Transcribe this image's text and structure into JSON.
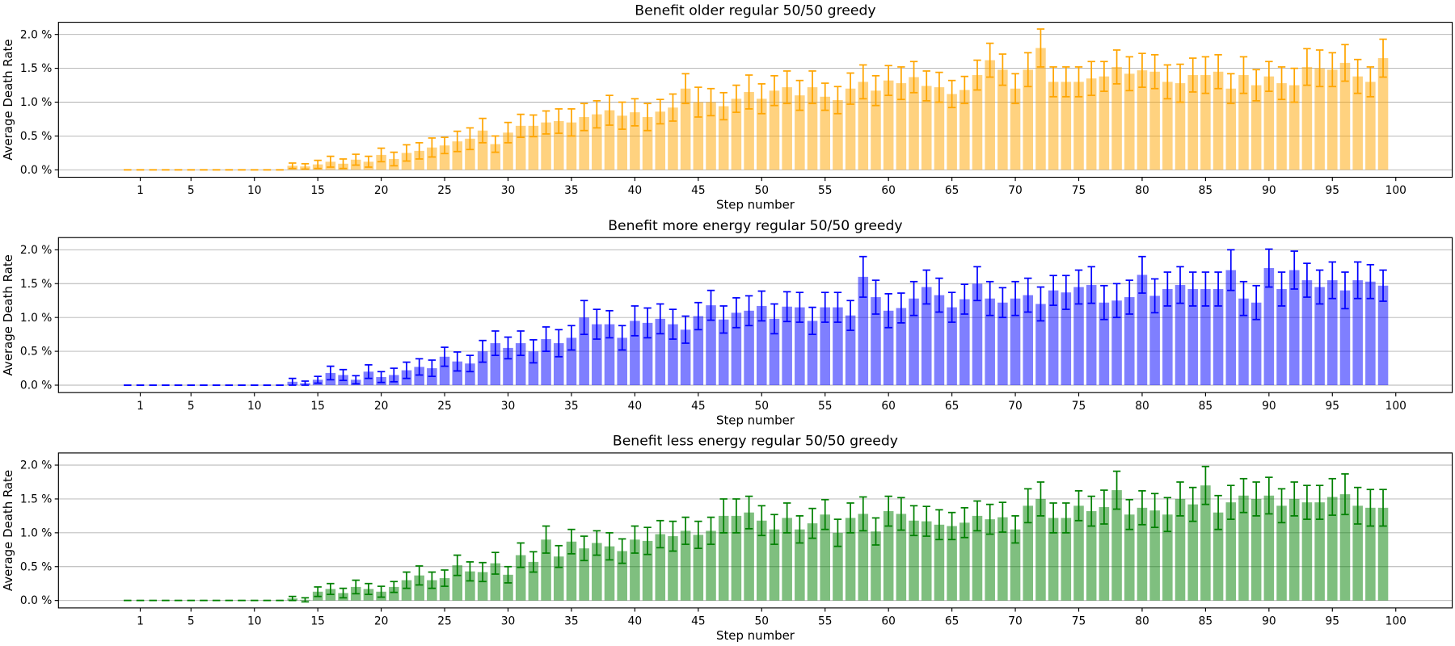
{
  "chart_data": [
    {
      "type": "bar",
      "title": "Benefit older regular 50/50 greedy",
      "xlabel": "Step number",
      "ylabel": "Average Death Rate",
      "color": "#ffa500",
      "alpha": 0.5,
      "grid": "y",
      "x": [
        0,
        1,
        2,
        3,
        4,
        5,
        6,
        7,
        8,
        9,
        10,
        11,
        12,
        13,
        14,
        15,
        16,
        17,
        18,
        19,
        20,
        21,
        22,
        23,
        24,
        25,
        26,
        27,
        28,
        29,
        30,
        31,
        32,
        33,
        34,
        35,
        36,
        37,
        38,
        39,
        40,
        41,
        42,
        43,
        44,
        45,
        46,
        47,
        48,
        49,
        50,
        51,
        52,
        53,
        54,
        55,
        56,
        57,
        58,
        59,
        60,
        61,
        62,
        63,
        64,
        65,
        66,
        67,
        68,
        69,
        70,
        71,
        72,
        73,
        74,
        75,
        76,
        77,
        78,
        79,
        80,
        81,
        82,
        83,
        84,
        85,
        86,
        87,
        88,
        89,
        90,
        91,
        92,
        93,
        94,
        95,
        96,
        97,
        98,
        99
      ],
      "values": [
        0,
        0,
        0,
        0,
        0,
        0,
        0,
        0,
        0,
        0,
        0,
        0,
        0,
        0.06,
        0.05,
        0.08,
        0.12,
        0.09,
        0.15,
        0.12,
        0.22,
        0.16,
        0.25,
        0.28,
        0.33,
        0.36,
        0.42,
        0.46,
        0.58,
        0.38,
        0.55,
        0.65,
        0.65,
        0.7,
        0.72,
        0.7,
        0.78,
        0.82,
        0.88,
        0.8,
        0.85,
        0.78,
        0.86,
        0.92,
        1.2,
        1.0,
        1.0,
        0.94,
        1.05,
        1.15,
        1.05,
        1.17,
        1.22,
        1.1,
        1.22,
        1.08,
        1.03,
        1.2,
        1.3,
        1.17,
        1.32,
        1.28,
        1.37,
        1.24,
        1.22,
        1.12,
        1.18,
        1.4,
        1.62,
        1.48,
        1.2,
        1.48,
        1.8,
        1.3,
        1.3,
        1.3,
        1.35,
        1.38,
        1.52,
        1.42,
        1.47,
        1.45,
        1.3,
        1.28,
        1.4,
        1.4,
        1.45,
        1.2,
        1.4,
        1.25,
        1.38,
        1.28,
        1.25,
        1.52,
        1.5,
        1.48,
        1.58,
        1.38,
        1.3,
        1.65
      ],
      "errors": [
        0,
        0,
        0,
        0,
        0,
        0,
        0,
        0,
        0,
        0,
        0,
        0,
        0,
        0.04,
        0.04,
        0.06,
        0.08,
        0.07,
        0.08,
        0.08,
        0.1,
        0.1,
        0.12,
        0.12,
        0.14,
        0.12,
        0.15,
        0.16,
        0.18,
        0.12,
        0.15,
        0.17,
        0.16,
        0.17,
        0.18,
        0.2,
        0.2,
        0.2,
        0.22,
        0.2,
        0.2,
        0.2,
        0.18,
        0.2,
        0.22,
        0.22,
        0.2,
        0.2,
        0.2,
        0.25,
        0.22,
        0.22,
        0.24,
        0.22,
        0.24,
        0.2,
        0.2,
        0.23,
        0.25,
        0.22,
        0.22,
        0.24,
        0.23,
        0.22,
        0.22,
        0.2,
        0.2,
        0.22,
        0.25,
        0.23,
        0.22,
        0.25,
        0.28,
        0.22,
        0.22,
        0.22,
        0.25,
        0.22,
        0.25,
        0.25,
        0.25,
        0.25,
        0.25,
        0.28,
        0.25,
        0.27,
        0.25,
        0.22,
        0.27,
        0.23,
        0.22,
        0.24,
        0.25,
        0.27,
        0.27,
        0.25,
        0.27,
        0.25,
        0.22,
        0.28
      ],
      "xlim": [
        -5.45,
        104.45
      ],
      "xticks": [
        1,
        5,
        10,
        15,
        20,
        25,
        30,
        35,
        40,
        45,
        50,
        55,
        60,
        65,
        70,
        75,
        80,
        85,
        90,
        95,
        100
      ],
      "ylim": [
        -0.11,
        2.18
      ],
      "yticks": [
        {
          "value": 0,
          "label": "0.0 %"
        },
        {
          "value": 0.5,
          "label": "0.5 %"
        },
        {
          "value": 1,
          "label": "1.0 %"
        },
        {
          "value": 1.5,
          "label": "1.5 %"
        },
        {
          "value": 2,
          "label": "2.0 %"
        }
      ]
    },
    {
      "type": "bar",
      "title": "Benefit more energy regular 50/50 greedy",
      "xlabel": "Step number",
      "ylabel": "Average Death Rate",
      "color": "#0000ff",
      "alpha": 0.5,
      "grid": "y",
      "x": [
        0,
        1,
        2,
        3,
        4,
        5,
        6,
        7,
        8,
        9,
        10,
        11,
        12,
        13,
        14,
        15,
        16,
        17,
        18,
        19,
        20,
        21,
        22,
        23,
        24,
        25,
        26,
        27,
        28,
        29,
        30,
        31,
        32,
        33,
        34,
        35,
        36,
        37,
        38,
        39,
        40,
        41,
        42,
        43,
        44,
        45,
        46,
        47,
        48,
        49,
        50,
        51,
        52,
        53,
        54,
        55,
        56,
        57,
        58,
        59,
        60,
        61,
        62,
        63,
        64,
        65,
        66,
        67,
        68,
        69,
        70,
        71,
        72,
        73,
        74,
        75,
        76,
        77,
        78,
        79,
        80,
        81,
        82,
        83,
        84,
        85,
        86,
        87,
        88,
        89,
        90,
        91,
        92,
        93,
        94,
        95,
        96,
        97,
        98,
        99
      ],
      "values": [
        0,
        0,
        0,
        0,
        0,
        0,
        0,
        0,
        0,
        0,
        0,
        0,
        0,
        0.05,
        0.03,
        0.08,
        0.18,
        0.15,
        0.08,
        0.2,
        0.12,
        0.15,
        0.22,
        0.27,
        0.25,
        0.42,
        0.35,
        0.32,
        0.5,
        0.62,
        0.55,
        0.62,
        0.5,
        0.68,
        0.62,
        0.7,
        1.0,
        0.9,
        0.9,
        0.7,
        0.95,
        0.92,
        0.98,
        0.9,
        0.82,
        1.02,
        1.18,
        0.97,
        1.07,
        1.1,
        1.17,
        0.98,
        1.16,
        1.15,
        0.95,
        1.15,
        1.15,
        1.03,
        1.6,
        1.3,
        1.1,
        1.14,
        1.28,
        1.45,
        1.33,
        1.15,
        1.27,
        1.5,
        1.28,
        1.22,
        1.28,
        1.33,
        1.2,
        1.4,
        1.37,
        1.45,
        1.48,
        1.22,
        1.25,
        1.3,
        1.63,
        1.32,
        1.42,
        1.48,
        1.42,
        1.42,
        1.42,
        1.7,
        1.28,
        1.22,
        1.73,
        1.42,
        1.7,
        1.55,
        1.45,
        1.55,
        1.4,
        1.55,
        1.53,
        1.47
      ],
      "errors": [
        0,
        0,
        0,
        0,
        0,
        0,
        0,
        0,
        0,
        0,
        0,
        0,
        0,
        0.05,
        0.03,
        0.05,
        0.1,
        0.08,
        0.06,
        0.1,
        0.08,
        0.1,
        0.12,
        0.12,
        0.12,
        0.14,
        0.14,
        0.12,
        0.16,
        0.18,
        0.16,
        0.18,
        0.17,
        0.18,
        0.2,
        0.18,
        0.25,
        0.22,
        0.2,
        0.18,
        0.22,
        0.22,
        0.22,
        0.22,
        0.2,
        0.2,
        0.22,
        0.2,
        0.22,
        0.22,
        0.22,
        0.22,
        0.22,
        0.22,
        0.2,
        0.22,
        0.22,
        0.22,
        0.3,
        0.25,
        0.25,
        0.22,
        0.25,
        0.25,
        0.25,
        0.22,
        0.22,
        0.25,
        0.25,
        0.22,
        0.25,
        0.25,
        0.25,
        0.22,
        0.25,
        0.25,
        0.27,
        0.25,
        0.25,
        0.25,
        0.27,
        0.25,
        0.25,
        0.27,
        0.25,
        0.25,
        0.25,
        0.3,
        0.25,
        0.25,
        0.28,
        0.25,
        0.28,
        0.25,
        0.25,
        0.27,
        0.27,
        0.27,
        0.25,
        0.23
      ],
      "xlim": [
        -5.45,
        104.45
      ],
      "xticks": [
        1,
        5,
        10,
        15,
        20,
        25,
        30,
        35,
        40,
        45,
        50,
        55,
        60,
        65,
        70,
        75,
        80,
        85,
        90,
        95,
        100
      ],
      "ylim": [
        -0.11,
        2.18
      ],
      "yticks": [
        {
          "value": 0,
          "label": "0.0 %"
        },
        {
          "value": 0.5,
          "label": "0.5 %"
        },
        {
          "value": 1,
          "label": "1.0 %"
        },
        {
          "value": 1.5,
          "label": "1.5 %"
        },
        {
          "value": 2,
          "label": "2.0 %"
        }
      ]
    },
    {
      "type": "bar",
      "title": "Benefit less energy regular 50/50 greedy",
      "xlabel": "Step number",
      "ylabel": "Average Death Rate",
      "color": "#008000",
      "alpha": 0.5,
      "grid": "y",
      "x": [
        0,
        1,
        2,
        3,
        4,
        5,
        6,
        7,
        8,
        9,
        10,
        11,
        12,
        13,
        14,
        15,
        16,
        17,
        18,
        19,
        20,
        21,
        22,
        23,
        24,
        25,
        26,
        27,
        28,
        29,
        30,
        31,
        32,
        33,
        34,
        35,
        36,
        37,
        38,
        39,
        40,
        41,
        42,
        43,
        44,
        45,
        46,
        47,
        48,
        49,
        50,
        51,
        52,
        53,
        54,
        55,
        56,
        57,
        58,
        59,
        60,
        61,
        62,
        63,
        64,
        65,
        66,
        67,
        68,
        69,
        70,
        71,
        72,
        73,
        74,
        75,
        76,
        77,
        78,
        79,
        80,
        81,
        82,
        83,
        84,
        85,
        86,
        87,
        88,
        89,
        90,
        91,
        92,
        93,
        94,
        95,
        96,
        97,
        98,
        99
      ],
      "values": [
        0,
        0,
        0,
        0,
        0,
        0,
        0,
        0,
        0,
        0,
        0,
        0,
        0,
        0.03,
        0.01,
        0.13,
        0.17,
        0.11,
        0.2,
        0.17,
        0.13,
        0.2,
        0.3,
        0.37,
        0.3,
        0.33,
        0.52,
        0.43,
        0.42,
        0.55,
        0.38,
        0.67,
        0.57,
        0.9,
        0.65,
        0.87,
        0.77,
        0.85,
        0.8,
        0.73,
        0.9,
        0.88,
        0.98,
        0.95,
        1.03,
        0.97,
        1.03,
        1.25,
        1.25,
        1.3,
        1.18,
        1.05,
        1.22,
        1.05,
        1.14,
        1.27,
        1.0,
        1.22,
        1.28,
        1.02,
        1.32,
        1.28,
        1.18,
        1.17,
        1.12,
        1.1,
        1.15,
        1.25,
        1.2,
        1.23,
        1.05,
        1.4,
        1.5,
        1.22,
        1.22,
        1.4,
        1.32,
        1.38,
        1.63,
        1.27,
        1.37,
        1.33,
        1.27,
        1.5,
        1.42,
        1.7,
        1.3,
        1.45,
        1.55,
        1.5,
        1.55,
        1.4,
        1.5,
        1.45,
        1.45,
        1.53,
        1.57,
        1.4,
        1.37,
        1.37
      ],
      "errors": [
        0,
        0,
        0,
        0,
        0,
        0,
        0,
        0,
        0,
        0,
        0,
        0,
        0,
        0.03,
        0.03,
        0.07,
        0.08,
        0.07,
        0.1,
        0.08,
        0.08,
        0.08,
        0.12,
        0.14,
        0.12,
        0.12,
        0.15,
        0.14,
        0.14,
        0.16,
        0.12,
        0.18,
        0.15,
        0.2,
        0.16,
        0.18,
        0.18,
        0.18,
        0.2,
        0.18,
        0.2,
        0.2,
        0.2,
        0.22,
        0.2,
        0.2,
        0.2,
        0.25,
        0.25,
        0.24,
        0.22,
        0.22,
        0.22,
        0.2,
        0.22,
        0.22,
        0.2,
        0.22,
        0.25,
        0.2,
        0.22,
        0.24,
        0.22,
        0.22,
        0.22,
        0.2,
        0.22,
        0.22,
        0.22,
        0.22,
        0.2,
        0.25,
        0.25,
        0.22,
        0.22,
        0.22,
        0.22,
        0.25,
        0.28,
        0.22,
        0.25,
        0.25,
        0.25,
        0.25,
        0.25,
        0.28,
        0.25,
        0.25,
        0.25,
        0.25,
        0.27,
        0.25,
        0.25,
        0.25,
        0.25,
        0.27,
        0.3,
        0.27,
        0.27,
        0.27
      ],
      "xlim": [
        -5.45,
        104.45
      ],
      "xticks": [
        1,
        5,
        10,
        15,
        20,
        25,
        30,
        35,
        40,
        45,
        50,
        55,
        60,
        65,
        70,
        75,
        80,
        85,
        90,
        95,
        100
      ],
      "ylim": [
        -0.11,
        2.18
      ],
      "yticks": [
        {
          "value": 0,
          "label": "0.0 %"
        },
        {
          "value": 0.5,
          "label": "0.5 %"
        },
        {
          "value": 1,
          "label": "1.0 %"
        },
        {
          "value": 1.5,
          "label": "1.5 %"
        },
        {
          "value": 2,
          "label": "2.0 %"
        }
      ]
    }
  ]
}
